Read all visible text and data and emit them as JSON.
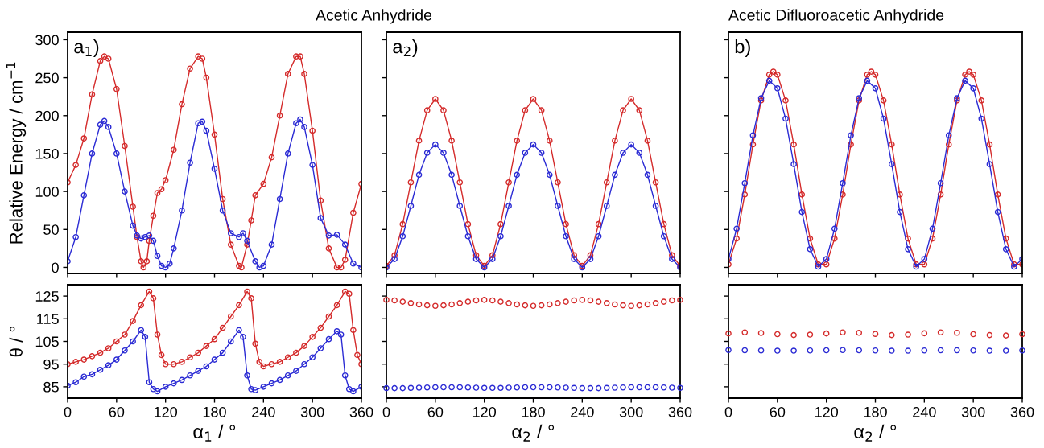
{
  "chart_data": [
    {
      "type": "line",
      "title": "Acetic Anhydride",
      "ylabel": "Relative Energy / cm$^{−1}$",
      "annotations": [
        "a$_{1}$)"
      ],
      "marker": "circle",
      "xlim": [
        0,
        360
      ],
      "xticks": [
        0,
        60,
        120,
        180,
        240,
        300,
        360
      ],
      "ylim": [
        -8,
        310
      ],
      "yticks": [
        0,
        50,
        100,
        150,
        200,
        250,
        300
      ],
      "tick_labels": "y",
      "series": [
        {
          "color": "#d42a2a",
          "x": [
            0,
            10,
            20,
            30,
            40,
            45,
            50,
            60,
            70,
            80,
            85,
            90,
            93,
            97,
            100,
            105,
            110,
            115,
            120,
            130,
            140,
            150,
            160,
            165,
            170,
            180,
            190,
            200,
            210,
            213,
            220,
            225,
            230,
            240,
            250,
            260,
            270,
            280,
            285,
            290,
            300,
            310,
            320,
            330,
            335,
            340,
            350,
            360
          ],
          "values": [
            112,
            135,
            170,
            228,
            272,
            278,
            275,
            235,
            160,
            80,
            40,
            8,
            0,
            8,
            35,
            68,
            98,
            103,
            115,
            155,
            215,
            262,
            278,
            275,
            250,
            175,
            90,
            30,
            2,
            0,
            30,
            62,
            95,
            110,
            145,
            200,
            255,
            278,
            278,
            255,
            180,
            88,
            25,
            0,
            0,
            10,
            72,
            110
          ]
        },
        {
          "color": "#2a2ad4",
          "x": [
            0,
            10,
            20,
            30,
            40,
            45,
            50,
            60,
            70,
            80,
            85,
            90,
            95,
            100,
            105,
            110,
            115,
            120,
            125,
            130,
            140,
            150,
            160,
            165,
            170,
            180,
            190,
            200,
            210,
            215,
            220,
            230,
            235,
            240,
            250,
            260,
            270,
            280,
            285,
            290,
            300,
            310,
            320,
            330,
            340,
            350,
            360
          ],
          "values": [
            8,
            40,
            95,
            150,
            188,
            193,
            185,
            150,
            100,
            55,
            42,
            38,
            40,
            42,
            35,
            15,
            2,
            0,
            5,
            25,
            75,
            138,
            190,
            192,
            180,
            130,
            75,
            45,
            40,
            45,
            35,
            8,
            0,
            2,
            30,
            90,
            150,
            190,
            195,
            185,
            135,
            65,
            42,
            43,
            30,
            5,
            0
          ]
        }
      ]
    },
    {
      "type": "line",
      "annotations": [
        "a$_{2}$)"
      ],
      "marker": "circle",
      "xlim": [
        0,
        360
      ],
      "xticks": [
        0,
        60,
        120,
        180,
        240,
        300,
        360
      ],
      "ylim": [
        -8,
        310
      ],
      "yticks": [
        0,
        50,
        100,
        150,
        200,
        250,
        300
      ],
      "tick_labels": false,
      "series": [
        {
          "color": "#d42a2a",
          "x": [
            0,
            10,
            20,
            30,
            40,
            50,
            60,
            70,
            80,
            90,
            100,
            110,
            120,
            130,
            140,
            150,
            160,
            170,
            180,
            190,
            200,
            210,
            220,
            230,
            240,
            250,
            260,
            270,
            280,
            290,
            300,
            310,
            320,
            330,
            340,
            350,
            360
          ],
          "values": [
            2,
            16,
            57,
            112,
            167,
            207,
            222,
            207,
            167,
            112,
            57,
            16,
            2,
            16,
            57,
            112,
            167,
            207,
            222,
            207,
            167,
            112,
            57,
            16,
            2,
            16,
            57,
            112,
            167,
            207,
            222,
            207,
            167,
            112,
            57,
            16,
            2
          ]
        },
        {
          "color": "#2a2ad4",
          "x": [
            0,
            10,
            20,
            30,
            40,
            50,
            60,
            70,
            80,
            90,
            100,
            110,
            120,
            130,
            140,
            150,
            160,
            170,
            180,
            190,
            200,
            210,
            220,
            230,
            240,
            250,
            260,
            270,
            280,
            290,
            300,
            310,
            320,
            330,
            340,
            350,
            360
          ],
          "values": [
            0,
            11,
            41,
            81,
            122,
            151,
            162,
            151,
            122,
            81,
            41,
            11,
            0,
            11,
            41,
            81,
            122,
            151,
            162,
            151,
            122,
            81,
            41,
            11,
            0,
            11,
            41,
            81,
            122,
            151,
            162,
            151,
            122,
            81,
            41,
            11,
            0
          ]
        }
      ]
    },
    {
      "type": "line",
      "title": "Acetic Difluoroacetic Anhydride",
      "annotations": [
        "b)"
      ],
      "marker": "circle",
      "xlim": [
        0,
        360
      ],
      "xticks": [
        0,
        60,
        120,
        180,
        240,
        300,
        360
      ],
      "ylim": [
        -8,
        310
      ],
      "yticks": [
        0,
        50,
        100,
        150,
        200,
        250,
        300
      ],
      "tick_labels": false,
      "series": [
        {
          "color": "#d42a2a",
          "x": [
            0,
            10,
            20,
            30,
            40,
            50,
            55,
            60,
            70,
            80,
            90,
            100,
            110,
            120,
            130,
            140,
            150,
            160,
            170,
            175,
            180,
            190,
            200,
            210,
            220,
            230,
            240,
            250,
            260,
            270,
            280,
            290,
            295,
            300,
            310,
            320,
            330,
            340,
            350,
            360
          ],
          "values": [
            4,
            38,
            96,
            162,
            220,
            254,
            258,
            254,
            220,
            162,
            96,
            38,
            4,
            4,
            38,
            96,
            162,
            220,
            254,
            258,
            254,
            220,
            162,
            96,
            38,
            4,
            4,
            38,
            96,
            162,
            220,
            254,
            258,
            254,
            220,
            162,
            96,
            38,
            4,
            4
          ]
        },
        {
          "color": "#2a2ad4",
          "x": [
            0,
            10,
            20,
            30,
            40,
            50,
            60,
            70,
            80,
            90,
            100,
            110,
            120,
            130,
            140,
            150,
            160,
            170,
            180,
            190,
            200,
            210,
            220,
            230,
            240,
            250,
            260,
            270,
            280,
            290,
            300,
            310,
            320,
            330,
            340,
            350,
            360
          ],
          "values": [
            11,
            51,
            111,
            174,
            223,
            246,
            236,
            196,
            136,
            73,
            24,
            1,
            11,
            51,
            111,
            174,
            223,
            246,
            236,
            196,
            136,
            73,
            24,
            1,
            11,
            51,
            111,
            174,
            223,
            246,
            236,
            196,
            136,
            73,
            24,
            1,
            11
          ]
        }
      ]
    },
    {
      "type": "line",
      "xlabel": "α$_{1}$ / °",
      "ylabel": "θ / °",
      "marker": "circle",
      "xlim": [
        0,
        360
      ],
      "xticks": [
        0,
        60,
        120,
        180,
        240,
        300,
        360
      ],
      "ylim": [
        80,
        130
      ],
      "yticks": [
        85,
        95,
        105,
        115,
        125
      ],
      "series": [
        {
          "color": "#d42a2a",
          "x": [
            0,
            10,
            20,
            30,
            40,
            50,
            60,
            70,
            80,
            90,
            100,
            105,
            110,
            115,
            120,
            130,
            140,
            150,
            160,
            170,
            180,
            190,
            200,
            210,
            220,
            225,
            230,
            235,
            240,
            250,
            260,
            270,
            280,
            290,
            300,
            310,
            320,
            330,
            340,
            345,
            350,
            355,
            360
          ],
          "values": [
            95,
            96,
            97,
            98.5,
            100,
            102,
            105,
            108,
            114,
            121,
            127,
            124,
            108,
            99,
            95,
            95,
            96,
            98,
            100,
            103,
            106,
            111,
            116,
            121,
            127,
            124,
            104,
            96,
            94,
            95,
            96,
            98,
            100,
            103,
            107,
            111,
            116,
            121,
            127,
            126,
            110,
            99,
            95
          ]
        },
        {
          "color": "#2a2ad4",
          "x": [
            0,
            10,
            20,
            30,
            40,
            50,
            60,
            70,
            80,
            90,
            95,
            100,
            105,
            110,
            120,
            130,
            140,
            150,
            160,
            170,
            180,
            190,
            200,
            210,
            215,
            220,
            225,
            230,
            240,
            250,
            260,
            270,
            280,
            290,
            300,
            310,
            320,
            330,
            335,
            340,
            345,
            350,
            360
          ],
          "values": [
            85.5,
            87,
            89.5,
            90.5,
            92.5,
            94.5,
            97,
            101,
            105,
            110,
            107,
            87,
            84,
            83,
            85,
            86.5,
            88,
            90,
            92,
            94,
            97,
            100,
            105,
            110,
            107,
            90,
            84,
            83.5,
            85,
            86.5,
            88,
            90,
            92,
            95,
            98,
            102,
            106,
            109.5,
            108,
            90,
            84,
            83,
            85
          ]
        }
      ]
    },
    {
      "type": "scatter",
      "xlabel": "α$_{2}$ / °",
      "marker": "circle",
      "xlim": [
        0,
        360
      ],
      "xticks": [
        0,
        60,
        120,
        180,
        240,
        300,
        360
      ],
      "ylim": [
        80,
        130
      ],
      "yticks": [
        85,
        95,
        105,
        115,
        125
      ],
      "tick_labels": "x",
      "series": [
        {
          "color": "#d42a2a",
          "x": [
            0,
            10,
            20,
            30,
            40,
            50,
            60,
            70,
            80,
            90,
            100,
            110,
            120,
            130,
            140,
            150,
            160,
            170,
            180,
            190,
            200,
            210,
            220,
            230,
            240,
            250,
            260,
            270,
            280,
            290,
            300,
            310,
            320,
            330,
            340,
            350,
            360
          ],
          "values": [
            123.3,
            123.1,
            122.5,
            121.9,
            121.3,
            120.9,
            120.7,
            120.9,
            121.3,
            121.9,
            122.5,
            123.1,
            123.3,
            123.1,
            122.5,
            121.9,
            121.3,
            120.9,
            120.7,
            120.9,
            121.3,
            121.9,
            122.5,
            123.1,
            123.3,
            123.1,
            122.5,
            121.9,
            121.3,
            120.9,
            120.7,
            120.9,
            121.3,
            121.9,
            122.5,
            123.1,
            123.3
          ]
        },
        {
          "color": "#2a2ad4",
          "x": [
            0,
            10,
            20,
            30,
            40,
            50,
            60,
            70,
            80,
            90,
            100,
            110,
            120,
            130,
            140,
            150,
            160,
            170,
            180,
            190,
            200,
            210,
            220,
            230,
            240,
            250,
            260,
            270,
            280,
            290,
            300,
            310,
            320,
            330,
            340,
            350,
            360
          ],
          "values": [
            84.4,
            84.4,
            84.4,
            84.5,
            84.6,
            84.7,
            84.8,
            84.8,
            84.8,
            84.8,
            84.7,
            84.6,
            84.5,
            84.5,
            84.5,
            84.6,
            84.7,
            84.8,
            84.8,
            84.8,
            84.8,
            84.7,
            84.6,
            84.5,
            84.4,
            84.4,
            84.4,
            84.5,
            84.6,
            84.7,
            84.8,
            84.8,
            84.8,
            84.8,
            84.7,
            84.6,
            84.5
          ]
        }
      ]
    },
    {
      "type": "scatter",
      "xlabel": "α$_{2}$ / °",
      "marker": "circle",
      "xlim": [
        0,
        360
      ],
      "xticks": [
        0,
        60,
        120,
        180,
        240,
        300,
        360
      ],
      "ylim": [
        80,
        130
      ],
      "yticks": [
        85,
        95,
        105,
        115,
        125
      ],
      "tick_labels": "x",
      "series": [
        {
          "color": "#d42a2a",
          "x": [
            0,
            20,
            40,
            60,
            80,
            100,
            120,
            140,
            160,
            180,
            200,
            220,
            240,
            260,
            280,
            300,
            320,
            340,
            360
          ],
          "values": [
            108.5,
            109,
            108.7,
            108.2,
            107.8,
            108,
            108.5,
            109,
            108.8,
            108.3,
            107.8,
            108,
            108.6,
            109,
            108.8,
            108.2,
            107.8,
            107.6,
            108.2
          ]
        },
        {
          "color": "#2a2ad4",
          "x": [
            0,
            20,
            40,
            60,
            80,
            100,
            120,
            140,
            160,
            180,
            200,
            220,
            240,
            260,
            280,
            300,
            320,
            340,
            360
          ],
          "values": [
            101.2,
            101.1,
            101,
            100.9,
            100.9,
            101,
            101.1,
            101.2,
            101.1,
            101,
            100.9,
            100.9,
            101,
            101.1,
            101.1,
            101,
            100.9,
            100.9,
            101
          ]
        }
      ]
    }
  ]
}
